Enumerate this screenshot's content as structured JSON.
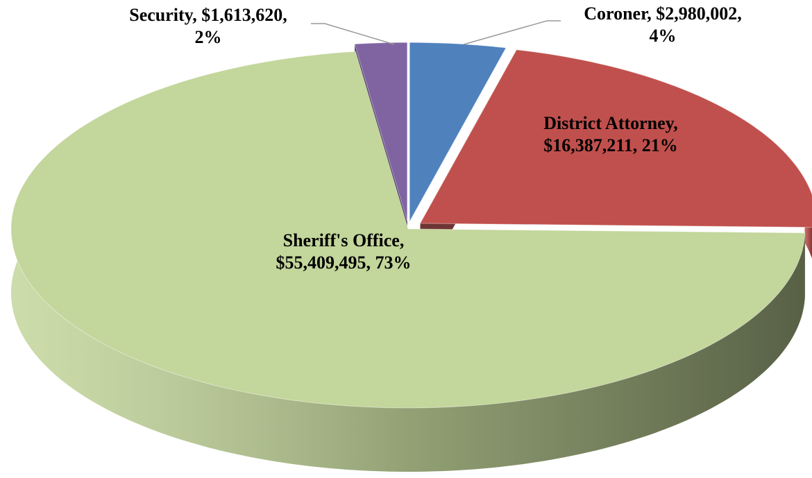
{
  "chart_data": {
    "type": "pie",
    "categories": [
      "Coroner",
      "District Attorney",
      "Sheriff's Office",
      "Security"
    ],
    "values": [
      2980002,
      16387211,
      55409495,
      1613620
    ],
    "value_labels": [
      "$2,980,002",
      "$16,387,211",
      "$55,409,495",
      "$1,613,620"
    ],
    "percents": [
      4,
      21,
      73,
      2
    ],
    "percent_labels": [
      "4%",
      "21%",
      "73%",
      "2%"
    ],
    "colors": [
      "#4f81bd",
      "#c0504d",
      "#c3d69b",
      "#8064a2"
    ]
  }
}
